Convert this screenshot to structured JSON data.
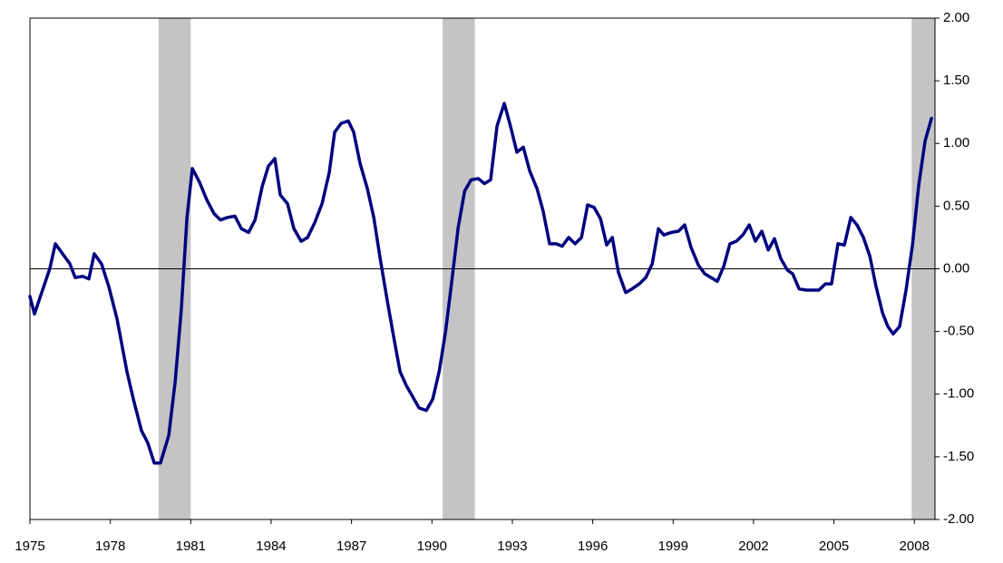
{
  "chart_data": {
    "type": "line",
    "x": [
      1975.0,
      1975.17,
      1975.47,
      1975.74,
      1975.95,
      1976.25,
      1976.49,
      1976.69,
      1976.96,
      1977.2,
      1977.4,
      1977.67,
      1977.94,
      1978.25,
      1978.62,
      1978.86,
      1979.16,
      1979.4,
      1979.64,
      1979.87,
      1980.18,
      1980.42,
      1980.65,
      1980.86,
      1981.06,
      1981.33,
      1981.6,
      1981.87,
      1982.11,
      1982.38,
      1982.65,
      1982.89,
      1983.16,
      1983.4,
      1983.67,
      1983.9,
      1984.14,
      1984.34,
      1984.61,
      1984.85,
      1985.12,
      1985.36,
      1985.63,
      1985.9,
      1986.17,
      1986.37,
      1986.61,
      1986.88,
      1987.08,
      1987.32,
      1987.59,
      1987.83,
      1988.07,
      1988.33,
      1988.57,
      1988.81,
      1989.04,
      1989.28,
      1989.52,
      1989.79,
      1990.03,
      1990.27,
      1990.51,
      1990.74,
      1990.98,
      1991.22,
      1991.46,
      1991.73,
      1991.96,
      1992.19,
      1992.43,
      1992.7,
      1992.94,
      1993.17,
      1993.41,
      1993.65,
      1993.92,
      1994.15,
      1994.39,
      1994.63,
      1994.86,
      1995.1,
      1995.34,
      1995.58,
      1995.81,
      1996.05,
      1996.29,
      1996.52,
      1996.73,
      1996.96,
      1997.23,
      1997.47,
      1997.74,
      1997.98,
      1998.22,
      1998.45,
      1998.65,
      1998.93,
      1999.2,
      1999.43,
      1999.67,
      1999.94,
      2000.18,
      2000.41,
      2000.65,
      2000.89,
      2001.12,
      2001.36,
      2001.6,
      2001.84,
      2002.07,
      2002.31,
      2002.55,
      2002.78,
      2003.02,
      2003.26,
      2003.46,
      2003.7,
      2003.97,
      2004.2,
      2004.44,
      2004.68,
      2004.91,
      2005.15,
      2005.39,
      2005.63,
      2005.86,
      2006.1,
      2006.34,
      2006.57,
      2006.81,
      2007.01,
      2007.21,
      2007.45,
      2007.69,
      2007.93,
      2008.16,
      2008.4,
      2008.64
    ],
    "series": [
      {
        "color": "#000080",
        "values": [
          -0.22,
          -0.36,
          -0.17,
          0,
          0.2,
          0.11,
          0.04,
          -0.07,
          -0.06,
          -0.08,
          0.12,
          0.04,
          -0.14,
          -0.4,
          -0.82,
          -1.04,
          -1.29,
          -1.39,
          -1.55,
          -1.55,
          -1.33,
          -0.9,
          -0.32,
          0.41,
          0.8,
          0.69,
          0.55,
          0.44,
          0.39,
          0.41,
          0.42,
          0.32,
          0.29,
          0.39,
          0.66,
          0.82,
          0.88,
          0.59,
          0.52,
          0.32,
          0.22,
          0.25,
          0.37,
          0.52,
          0.77,
          1.09,
          1.16,
          1.18,
          1.09,
          0.84,
          0.64,
          0.41,
          0.08,
          -0.25,
          -0.54,
          -0.82,
          -0.93,
          -1.02,
          -1.11,
          -1.13,
          -1.04,
          -0.82,
          -0.5,
          -0.1,
          0.33,
          0.62,
          0.71,
          0.72,
          0.68,
          0.71,
          1.14,
          1.32,
          1.13,
          0.93,
          0.97,
          0.78,
          0.64,
          0.46,
          0.2,
          0.2,
          0.18,
          0.25,
          0.2,
          0.25,
          0.51,
          0.49,
          0.4,
          0.19,
          0.25,
          -0.03,
          -0.19,
          -0.16,
          -0.12,
          -0.07,
          0.04,
          0.32,
          0.27,
          0.29,
          0.3,
          0.35,
          0.17,
          0.03,
          -0.04,
          -0.07,
          -0.1,
          0.02,
          0.2,
          0.22,
          0.27,
          0.35,
          0.22,
          0.3,
          0.15,
          0.24,
          0.08,
          -0.01,
          -0.04,
          -0.16,
          -0.17,
          -0.17,
          -0.17,
          -0.12,
          -0.12,
          0.2,
          0.19,
          0.41,
          0.35,
          0.25,
          0.1,
          -0.14,
          -0.35,
          -0.46,
          -0.52,
          -0.46,
          -0.17,
          0.19,
          0.66,
          1.02,
          1.2
        ]
      }
    ],
    "recessions": [
      [
        1979.8,
        1981.0
      ],
      [
        1990.4,
        1991.6
      ],
      [
        2007.9,
        2008.77
      ]
    ],
    "recession_color": "#c4c4c4",
    "xlim": [
      1975,
      2008.77
    ],
    "xticks": [
      1975,
      1978,
      1981,
      1984,
      1987,
      1990,
      1993,
      1996,
      1999,
      2002,
      2005,
      2008
    ],
    "ylim": [
      -2,
      2
    ],
    "yticks": [
      {
        "value": -2,
        "label": "-2.00"
      },
      {
        "value": -1.5,
        "label": "-1.50"
      },
      {
        "value": -1,
        "label": "-1.00"
      },
      {
        "value": -0.5,
        "label": "-0.50"
      },
      {
        "value": 0,
        "label": "0.00"
      },
      {
        "value": 0.5,
        "label": "0.50"
      },
      {
        "value": 1,
        "label": "1.00"
      },
      {
        "value": 1.5,
        "label": "1.50"
      },
      {
        "value": 2,
        "label": "2.00"
      }
    ]
  }
}
